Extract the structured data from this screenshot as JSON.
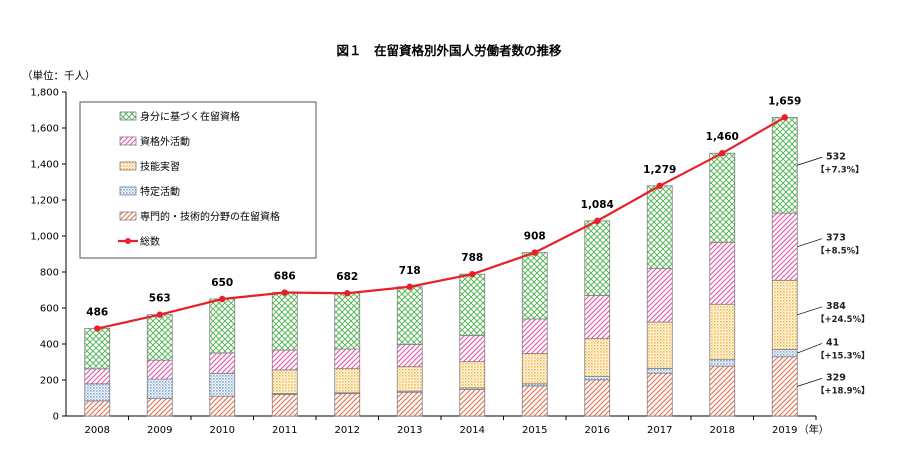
{
  "chart_data": {
    "type": "bar",
    "stacked": true,
    "title": "図１　在留資格別外国人労働者数の推移",
    "unit_label": "（単位：千人）",
    "x_unit": "（年）",
    "categories": [
      "2008",
      "2009",
      "2010",
      "2011",
      "2012",
      "2013",
      "2014",
      "2015",
      "2016",
      "2017",
      "2018",
      "2019"
    ],
    "ylim": [
      0,
      1800
    ],
    "yticks": [
      0,
      200,
      400,
      600,
      800,
      1000,
      1200,
      1400,
      1600,
      1800
    ],
    "ytick_labels": [
      "0",
      "200",
      "400",
      "600",
      "800",
      "1,000",
      "1,200",
      "1,400",
      "1,600",
      "1,800"
    ],
    "grid": false,
    "legend_position": "top-left",
    "series": [
      {
        "key": "senmon",
        "name": "専門的・技術的分野の在留資格",
        "color": "#e46c4a",
        "pattern": "diagonal",
        "values": [
          84,
          97,
          110,
          120,
          124,
          132,
          147,
          167,
          201,
          238,
          277,
          329
        ]
      },
      {
        "key": "tokutei",
        "name": "特定活動",
        "color": "#7fa7d9",
        "pattern": "dots",
        "values": [
          95,
          108,
          127,
          5,
          5,
          6,
          9,
          12,
          18,
          26,
          36,
          41
        ]
      },
      {
        "key": "ginou",
        "name": "技能実習",
        "color": "#f5b83d",
        "pattern": "dots",
        "values": [
          0,
          0,
          0,
          131,
          134,
          136,
          146,
          168,
          211,
          258,
          308,
          384
        ]
      },
      {
        "key": "shikakugai",
        "name": "資格外活動",
        "color": "#e64fa8",
        "pattern": "diagonal",
        "values": [
          83,
          105,
          113,
          110,
          109,
          124,
          146,
          192,
          240,
          297,
          344,
          373
        ]
      },
      {
        "key": "mibun",
        "name": "身分に基づく在留資格",
        "color": "#5cb85c",
        "pattern": "cross",
        "values": [
          224,
          253,
          300,
          320,
          310,
          320,
          340,
          369,
          414,
          460,
          495,
          532
        ]
      }
    ],
    "totals": {
      "name": "総数",
      "color": "#e8202a",
      "values": [
        486,
        563,
        650,
        686,
        682,
        718,
        788,
        908,
        1084,
        1279,
        1460,
        1659
      ],
      "labels": [
        "486",
        "563",
        "650",
        "686",
        "682",
        "718",
        "788",
        "908",
        "1,084",
        "1,279",
        "1,460",
        "1,659"
      ]
    },
    "annotations_2019": [
      {
        "series": "mibun",
        "value": "532",
        "change": "【+7.3%】"
      },
      {
        "series": "shikakugai",
        "value": "373",
        "change": "【+8.5%】"
      },
      {
        "series": "ginou",
        "value": "384",
        "change": "【+24.5%】"
      },
      {
        "series": "tokutei",
        "value": "41",
        "change": "【+15.3%】"
      },
      {
        "series": "senmon",
        "value": "329",
        "change": "【+18.9%】"
      }
    ]
  }
}
